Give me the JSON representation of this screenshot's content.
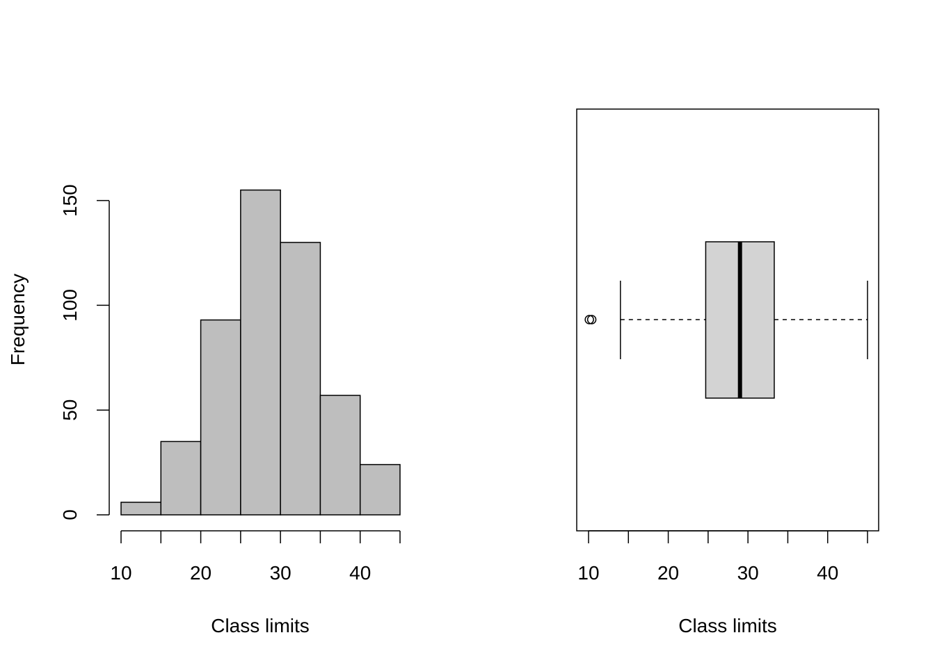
{
  "chart_data": [
    {
      "type": "bar",
      "subtype": "histogram",
      "bins": [
        [
          10,
          15
        ],
        [
          15,
          20
        ],
        [
          20,
          25
        ],
        [
          25,
          30
        ],
        [
          30,
          35
        ],
        [
          35,
          40
        ],
        [
          40,
          45
        ]
      ],
      "values": [
        6,
        35,
        93,
        155,
        130,
        57,
        24
      ],
      "xlabel": "Class limits",
      "ylabel": "Frequency",
      "xticks": [
        "10",
        "20",
        "30",
        "40"
      ],
      "xtick_values": [
        10,
        20,
        30,
        40
      ],
      "xlim": [
        10,
        45
      ],
      "yticks": [
        "0",
        "50",
        "100",
        "150"
      ],
      "ytick_values": [
        0,
        50,
        100,
        150
      ],
      "ylim": [
        0,
        155
      ],
      "bar_color": "#bebebe",
      "grid": false
    },
    {
      "type": "boxplot",
      "orientation": "horizontal",
      "xlabel": "Class limits",
      "xticks": [
        "10",
        "20",
        "30",
        "40"
      ],
      "xtick_values": [
        10,
        20,
        30,
        40
      ],
      "xlim": [
        10,
        45
      ],
      "whisker_low": 14,
      "q1": 24.7,
      "median": 29,
      "q3": 33.3,
      "whisker_high": 45,
      "outliers": [
        10.1,
        10.4
      ],
      "box_color": "#d3d3d3",
      "grid": false
    }
  ]
}
